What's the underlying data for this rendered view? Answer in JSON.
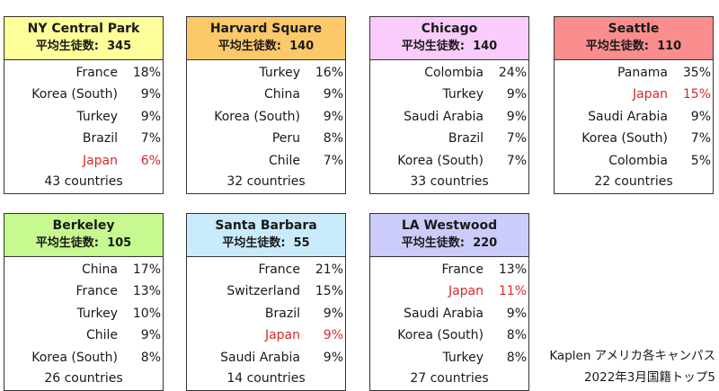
{
  "avg_label": "平均生徒数:",
  "campuses": [
    {
      "name": "NY Central Park",
      "avg": "345",
      "color": "#fefe9a",
      "rows": [
        {
          "c": "France",
          "p": "18%"
        },
        {
          "c": "Korea (South)",
          "p": "9%"
        },
        {
          "c": "Turkey",
          "p": "9%"
        },
        {
          "c": "Brazil",
          "p": "7%"
        },
        {
          "c": "Japan",
          "p": "6%",
          "hl": true
        }
      ],
      "total": "43 countries"
    },
    {
      "name": "Harvard Square",
      "avg": "140",
      "color": "#fcc96a",
      "rows": [
        {
          "c": "Turkey",
          "p": "16%"
        },
        {
          "c": "China",
          "p": "9%"
        },
        {
          "c": "Korea (South)",
          "p": "9%"
        },
        {
          "c": "Peru",
          "p": "8%"
        },
        {
          "c": "Chile",
          "p": "7%"
        }
      ],
      "total": "32 countries"
    },
    {
      "name": "Chicago",
      "avg": "140",
      "color": "#f9ccfb",
      "rows": [
        {
          "c": "Colombia",
          "p": "24%"
        },
        {
          "c": "Turkey",
          "p": "9%"
        },
        {
          "c": "Saudi Arabia",
          "p": "9%"
        },
        {
          "c": "Brazil",
          "p": "7%"
        },
        {
          "c": "Korea (South)",
          "p": "7%"
        }
      ],
      "total": "33 countries"
    },
    {
      "name": "Seattle",
      "avg": "110",
      "color": "#fa8e8e",
      "rows": [
        {
          "c": "Panama",
          "p": "35%"
        },
        {
          "c": "Japan",
          "p": "15%",
          "hl": true
        },
        {
          "c": "Saudi Arabia",
          "p": "9%"
        },
        {
          "c": "Korea (South)",
          "p": "7%"
        },
        {
          "c": "Colombia",
          "p": "5%"
        }
      ],
      "total": "22 countries"
    },
    {
      "name": "Berkeley",
      "avg": "105",
      "color": "#c6f98f",
      "rows": [
        {
          "c": "China",
          "p": "17%"
        },
        {
          "c": "France",
          "p": "13%"
        },
        {
          "c": "Turkey",
          "p": "10%"
        },
        {
          "c": "Chile",
          "p": "9%"
        },
        {
          "c": "Korea (South)",
          "p": "8%"
        }
      ],
      "total": "26 countries"
    },
    {
      "name": "Santa Barbara",
      "avg": "55",
      "color": "#c9ebfb",
      "rows": [
        {
          "c": "France",
          "p": "21%"
        },
        {
          "c": "Switzerland",
          "p": "15%"
        },
        {
          "c": "Brazil",
          "p": "9%"
        },
        {
          "c": "Japan",
          "p": "9%",
          "hl": true
        },
        {
          "c": "Saudi Arabia",
          "p": "9%"
        }
      ],
      "total": "14 countries"
    },
    {
      "name": "LA Westwood",
      "avg": "220",
      "color": "#ccccfb",
      "rows": [
        {
          "c": "France",
          "p": "13%"
        },
        {
          "c": "Japan",
          "p": "11%",
          "hl": true
        },
        {
          "c": "Saudi Arabia",
          "p": "9%"
        },
        {
          "c": "Korea (South)",
          "p": "8%"
        },
        {
          "c": "Turkey",
          "p": "8%"
        }
      ],
      "total": "27 countries"
    }
  ],
  "note": {
    "line1": "Kaplen アメリカ各キャンパス",
    "line2": "2022年3月国籍トップ5"
  }
}
